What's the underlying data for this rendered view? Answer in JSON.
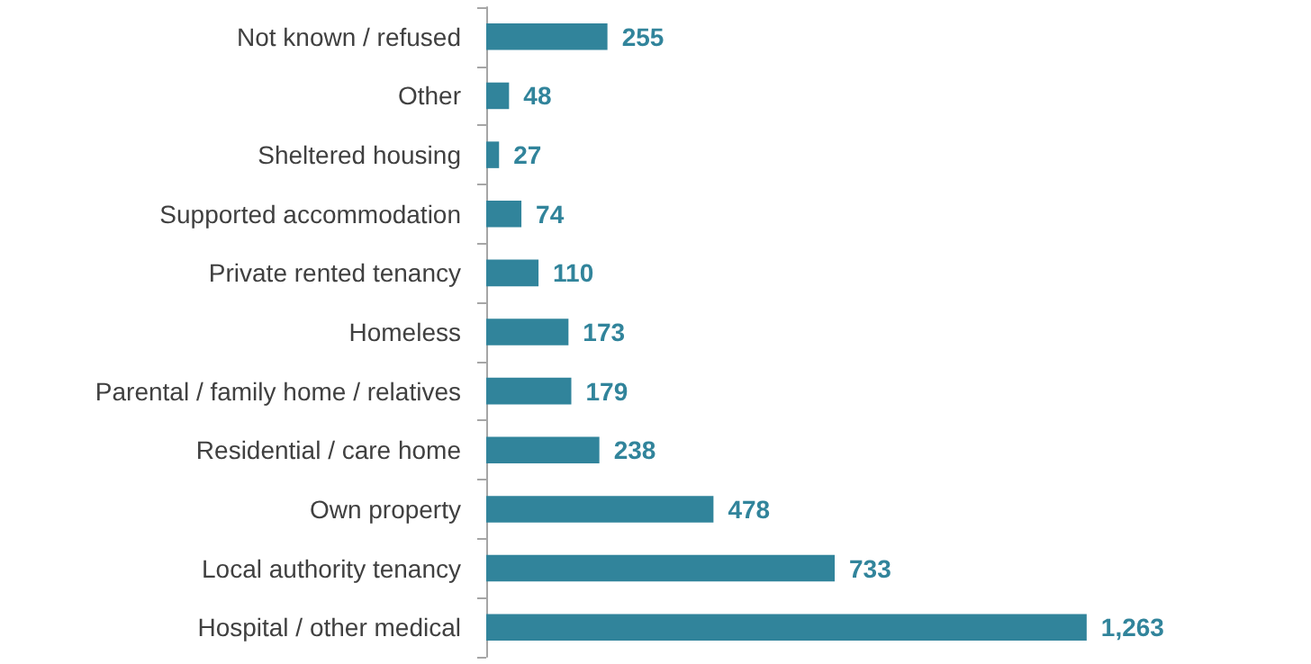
{
  "chart_data": {
    "type": "bar",
    "orientation": "horizontal",
    "categories": [
      "Not known / refused",
      "Other",
      "Sheltered housing",
      "Supported accommodation",
      "Private rented tenancy",
      "Homeless",
      "Parental / family home / relatives",
      "Residential / care home",
      "Own property",
      "Local authority tenancy",
      "Hospital / other medical"
    ],
    "values": [
      255,
      48,
      27,
      74,
      110,
      173,
      179,
      238,
      478,
      733,
      1263
    ],
    "value_labels": [
      "255",
      "48",
      "27",
      "74",
      "110",
      "173",
      "179",
      "238",
      "478",
      "733",
      "1,263"
    ],
    "color": "#31849b"
  }
}
